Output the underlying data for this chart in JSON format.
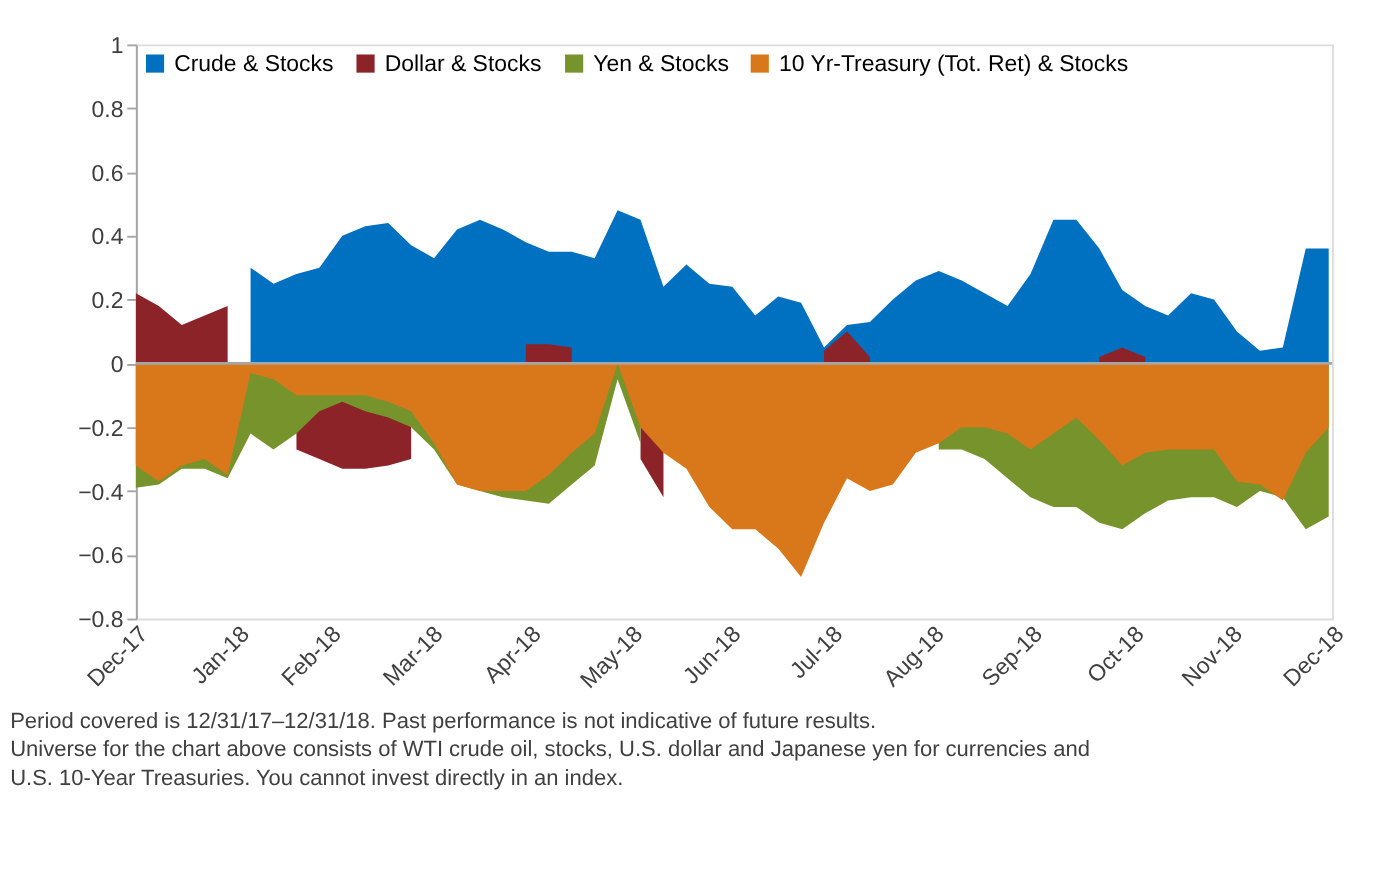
{
  "chart_data": {
    "type": "area",
    "legend": "top left",
    "x": [
      "2017-12-31",
      "2018-01-07",
      "2018-01-14",
      "2018-01-21",
      "2018-01-28",
      "2018-02-04",
      "2018-02-11",
      "2018-02-18",
      "2018-02-25",
      "2018-03-04",
      "2018-03-11",
      "2018-03-18",
      "2018-03-25",
      "2018-04-01",
      "2018-04-08",
      "2018-04-15",
      "2018-04-22",
      "2018-04-29",
      "2018-05-06",
      "2018-05-13",
      "2018-05-20",
      "2018-05-27",
      "2018-06-03",
      "2018-06-10",
      "2018-06-17",
      "2018-06-24",
      "2018-07-01",
      "2018-07-08",
      "2018-07-15",
      "2018-07-22",
      "2018-07-29",
      "2018-08-05",
      "2018-08-12",
      "2018-08-19",
      "2018-08-26",
      "2018-09-02",
      "2018-09-09",
      "2018-09-16",
      "2018-09-23",
      "2018-09-30",
      "2018-10-07",
      "2018-10-14",
      "2018-10-21",
      "2018-10-28",
      "2018-11-04",
      "2018-11-11",
      "2018-11-18",
      "2018-11-25",
      "2018-12-02",
      "2018-12-09",
      "2018-12-16",
      "2018-12-23",
      "2018-12-30"
    ],
    "series": [
      {
        "name": "Crude & Stocks",
        "color": "#0070c0",
        "values": [
          null,
          null,
          null,
          null,
          null,
          0.3,
          0.25,
          0.28,
          0.3,
          0.4,
          0.43,
          0.44,
          0.37,
          0.33,
          0.42,
          0.45,
          0.42,
          0.38,
          0.35,
          0.35,
          0.33,
          0.48,
          0.45,
          0.24,
          0.31,
          0.25,
          0.24,
          0.15,
          0.21,
          0.19,
          0.05,
          0.12,
          0.13,
          0.2,
          0.26,
          0.29,
          0.26,
          0.22,
          0.18,
          0.28,
          0.45,
          0.45,
          0.36,
          0.23,
          0.18,
          0.15,
          0.22,
          0.2,
          0.1,
          0.04,
          0.05,
          0.36,
          0.36
        ]
      },
      {
        "name": "Dollar & Stocks",
        "color": "#8b2329",
        "values": [
          0.22,
          0.18,
          0.12,
          0.15,
          0.18,
          null,
          null,
          -0.27,
          -0.3,
          -0.33,
          -0.33,
          -0.32,
          -0.3,
          null,
          null,
          null,
          null,
          0.06,
          0.06,
          0.05,
          null,
          null,
          -0.3,
          -0.42,
          null,
          null,
          null,
          null,
          null,
          null,
          0.04,
          0.1,
          0.02,
          null,
          null,
          null,
          null,
          null,
          null,
          null,
          null,
          null,
          0.02,
          0.05,
          0.02,
          null,
          null,
          null,
          null,
          null,
          null,
          null,
          null
        ]
      },
      {
        "name": "Yen & Stocks",
        "color": "#77932b",
        "values": [
          -0.39,
          -0.38,
          -0.33,
          -0.33,
          -0.36,
          -0.22,
          -0.27,
          -0.22,
          -0.15,
          -0.12,
          -0.15,
          -0.17,
          -0.2,
          -0.27,
          -0.38,
          -0.4,
          -0.42,
          -0.43,
          -0.44,
          -0.38,
          -0.32,
          -0.05,
          -0.25,
          null,
          null,
          null,
          null,
          null,
          null,
          null,
          null,
          null,
          null,
          null,
          null,
          -0.27,
          -0.27,
          -0.3,
          -0.36,
          -0.42,
          -0.45,
          -0.45,
          -0.5,
          -0.52,
          -0.47,
          -0.43,
          -0.42,
          -0.42,
          -0.45,
          -0.4,
          -0.42,
          -0.52,
          -0.48
        ]
      },
      {
        "name": "10 Yr-Treasury (Tot. Ret) & Stocks",
        "color": "#d9781b",
        "values": [
          -0.32,
          -0.37,
          -0.32,
          -0.3,
          -0.35,
          -0.03,
          -0.05,
          -0.1,
          -0.1,
          -0.1,
          -0.1,
          -0.12,
          -0.15,
          -0.25,
          -0.38,
          -0.4,
          -0.4,
          -0.4,
          -0.35,
          -0.28,
          -0.22,
          0.0,
          -0.2,
          -0.28,
          -0.33,
          -0.45,
          -0.52,
          -0.52,
          -0.58,
          -0.67,
          -0.5,
          -0.36,
          -0.4,
          -0.38,
          -0.28,
          -0.25,
          -0.2,
          -0.2,
          -0.22,
          -0.27,
          -0.22,
          -0.17,
          -0.24,
          -0.32,
          -0.28,
          -0.27,
          -0.27,
          -0.27,
          -0.37,
          -0.38,
          -0.43,
          -0.28,
          -0.2
        ]
      }
    ],
    "xlim": [
      "2017-12-31",
      "2018-12-31"
    ],
    "xticks": [
      {
        "value": "2017-12-31",
        "label": "Dec-17"
      },
      {
        "value": "2018-01-31",
        "label": "Jan-18"
      },
      {
        "value": "2018-02-28",
        "label": "Feb-18"
      },
      {
        "value": "2018-03-31",
        "label": "Mar-18"
      },
      {
        "value": "2018-04-30",
        "label": "Apr-18"
      },
      {
        "value": "2018-05-31",
        "label": "May-18"
      },
      {
        "value": "2018-06-30",
        "label": "Jun-18"
      },
      {
        "value": "2018-07-31",
        "label": "Jul-18"
      },
      {
        "value": "2018-08-31",
        "label": "Aug-18"
      },
      {
        "value": "2018-09-30",
        "label": "Sep-18"
      },
      {
        "value": "2018-10-31",
        "label": "Oct-18"
      },
      {
        "value": "2018-11-30",
        "label": "Nov-18"
      },
      {
        "value": "2018-12-31",
        "label": "Dec-18"
      }
    ],
    "ylim": [
      -0.8,
      1
    ],
    "yticks": [
      -0.8,
      -0.6,
      -0.4,
      -0.2,
      0,
      0.2,
      0.4,
      0.6,
      0.8,
      1
    ],
    "ref_lines": [
      {
        "axis": "y",
        "value": 0,
        "color": "#a6a6a6"
      }
    ],
    "annotations": [
      "Period covered is 12/31/17–12/31/18. Past performance is not indicative of future results.",
      "Universe for the chart above consists of WTI crude oil, stocks, U.S. dollar and Japanese yen for currencies and U.S. 10-Year Treasuries. You cannot invest directly in an index."
    ]
  }
}
